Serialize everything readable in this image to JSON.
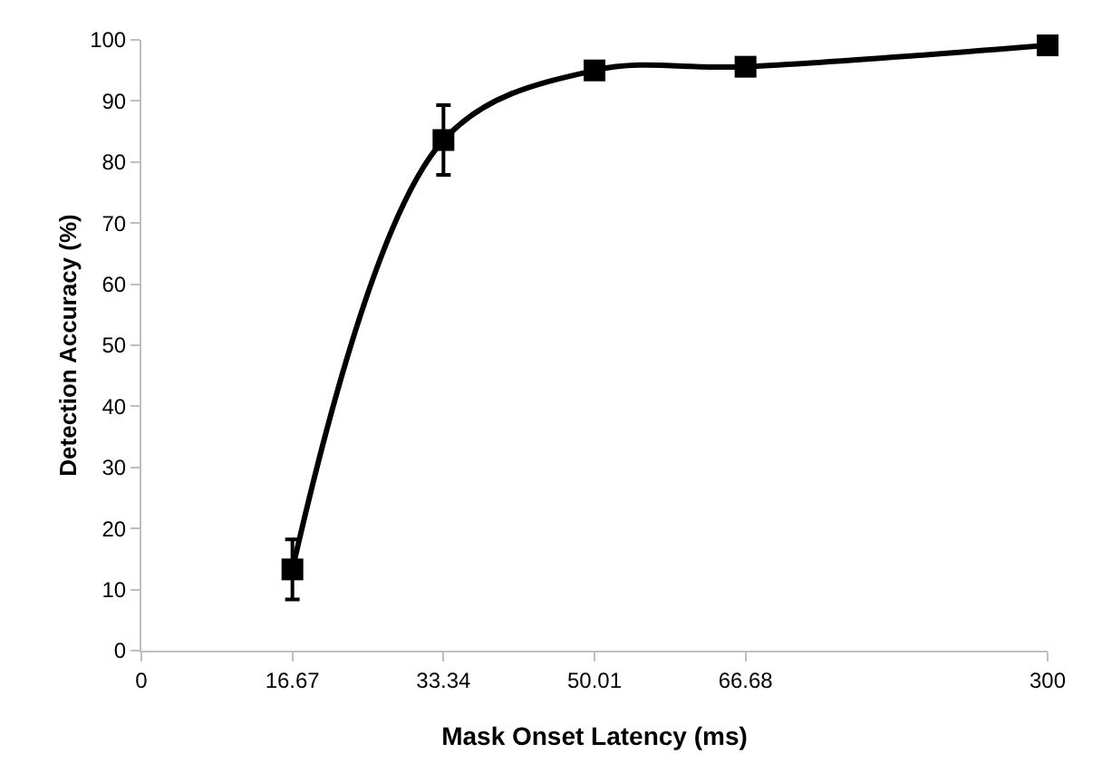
{
  "chart_data": {
    "type": "line",
    "xlabel": "Mask Onset Latency (ms)",
    "ylabel": "Detection Accuracy (%)",
    "categories": [
      "0",
      "16.67",
      "33.34",
      "50.01",
      "66.68",
      null,
      "300"
    ],
    "series": [
      {
        "color": "#000000",
        "values": [
          null,
          13.3,
          83.6,
          95,
          95.6,
          null,
          99.1
        ],
        "errors": [
          null,
          4.9,
          5.7,
          null,
          null,
          null,
          null
        ]
      }
    ],
    "ylim": [
      0,
      100
    ],
    "yticks": [
      0,
      10,
      20,
      30,
      40,
      50,
      60,
      70,
      80,
      90,
      100
    ],
    "grid": false,
    "marker": "square",
    "line_style": "solid"
  }
}
